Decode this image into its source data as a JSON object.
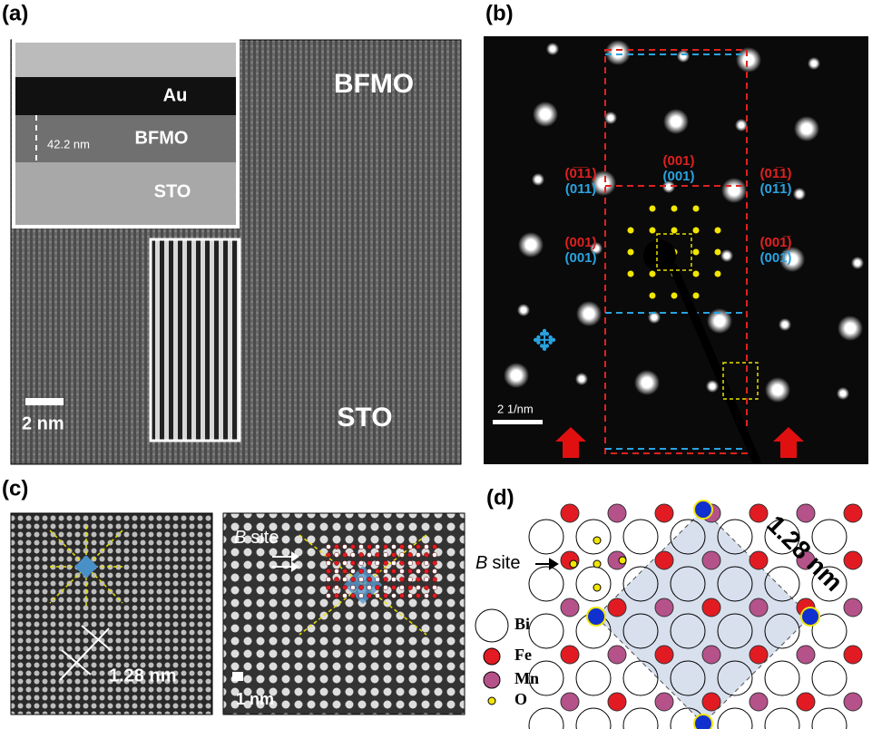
{
  "panels": {
    "a": {
      "label": "(a)",
      "inset_layers": [
        "Au",
        "BFMO",
        "STO"
      ],
      "inset_thickness": "42.2 nm",
      "regions": [
        "BFMO",
        "STO"
      ],
      "scale_bar": "2 nm"
    },
    "b": {
      "label": "(b)",
      "indices": [
        {
          "red": "(0̅1̅1)",
          "blue": "(011)"
        },
        {
          "red": "(001)",
          "blue": "(001)"
        },
        {
          "red": "(01̅1)",
          "blue": "(01̅1)"
        },
        {
          "red": "(001)",
          "blue": "(001)"
        },
        {
          "red": "(001̅)",
          "blue": "(001̅)"
        }
      ],
      "scale_bar": "2 1/nm"
    },
    "c": {
      "label": "(c)",
      "distance": "1.28 nm",
      "site_italic": "B",
      "site_rest": "site",
      "scale_bar": "1 nm"
    },
    "d": {
      "label": "(d)",
      "distance": "1.28 nm",
      "site_italic": "B",
      "site_rest": "site",
      "legend": [
        "Bi",
        "Fe",
        "Mn",
        "O"
      ]
    }
  }
}
